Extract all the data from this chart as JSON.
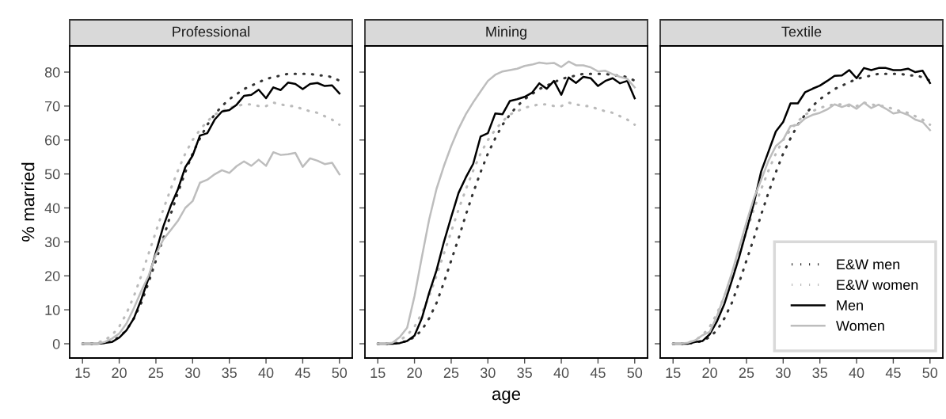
{
  "chart_data": [
    {
      "type": "line",
      "title": "Professional",
      "ylabel": "% married",
      "x": [
        15,
        16,
        17,
        18,
        19,
        20,
        21,
        22,
        23,
        24,
        25,
        26,
        27,
        28,
        29,
        30,
        31,
        32,
        33,
        34,
        35,
        36,
        37,
        38,
        39,
        40,
        41,
        42,
        43,
        44,
        45,
        46,
        47,
        48,
        49,
        50
      ],
      "xlim": [
        13.25,
        51.75
      ],
      "ylim": [
        -4.2,
        87.7
      ],
      "xticks": [
        15,
        20,
        25,
        30,
        35,
        40,
        45,
        50
      ],
      "yticks": [
        0,
        10,
        20,
        30,
        40,
        50,
        60,
        70,
        80
      ],
      "grid": false,
      "series": [
        {
          "color": "#333333",
          "line_style": "dotted",
          "values": [
            0,
            0,
            0.1,
            0.3,
            0.8,
            2,
            4,
            7.5,
            12,
            18,
            24.5,
            31,
            38,
            44.5,
            50.5,
            56,
            60.5,
            64.5,
            67.5,
            70,
            72,
            73.5,
            75,
            76,
            77,
            78,
            78.5,
            79,
            79.5,
            79.5,
            79.5,
            79.5,
            79,
            79,
            78.5,
            77.5
          ]
        },
        {
          "color": "#bbbbbb",
          "line_style": "dotted",
          "values": [
            0,
            0,
            0.3,
            1,
            2.5,
            5,
            9,
            14,
            20,
            26.5,
            33,
            39.5,
            45.5,
            51,
            56,
            60,
            63,
            65.5,
            67.5,
            68.5,
            69.5,
            70,
            70.5,
            70.5,
            70,
            70,
            71,
            70.5,
            70,
            70,
            69,
            68.5,
            68,
            67,
            66,
            64.5
          ]
        },
        {
          "color": "#000000",
          "line_style": "solid",
          "values": [
            0,
            0,
            0,
            0.2,
            0.5,
            1.8,
            4,
            7.5,
            13,
            19.3,
            27,
            34.5,
            40.5,
            45.5,
            52,
            55.4,
            61.3,
            62,
            66,
            68.4,
            68.8,
            70.4,
            73,
            73.3,
            74.8,
            72.3,
            75.5,
            74.7,
            76.9,
            76.5,
            75,
            76.5,
            76.8,
            75.9,
            76.1,
            73.7
          ]
        },
        {
          "color": "#bdbdbd",
          "line_style": "solid",
          "values": [
            0,
            0,
            0,
            0.5,
            1.5,
            3,
            6,
            10.5,
            15.5,
            20,
            26.3,
            30.7,
            33.4,
            36.2,
            40,
            42,
            47.4,
            48.3,
            49.9,
            51.1,
            50.3,
            52.3,
            53.7,
            52.4,
            54.2,
            52.4,
            56.4,
            55.6,
            55.8,
            56.2,
            52.1,
            54.6,
            53.9,
            52.9,
            53.3,
            49.9
          ]
        }
      ]
    },
    {
      "type": "line",
      "title": "Mining",
      "xlabel": "age",
      "x": [
        15,
        16,
        17,
        18,
        19,
        20,
        21,
        22,
        23,
        24,
        25,
        26,
        27,
        28,
        29,
        30,
        31,
        32,
        33,
        34,
        35,
        36,
        37,
        38,
        39,
        40,
        41,
        42,
        43,
        44,
        45,
        46,
        47,
        48,
        49,
        50
      ],
      "xlim": [
        13.25,
        51.75
      ],
      "ylim": [
        -4.2,
        87.7
      ],
      "xticks": [
        15,
        20,
        25,
        30,
        35,
        40,
        45,
        50
      ],
      "yticks": [
        0,
        10,
        20,
        30,
        40,
        50,
        60,
        70,
        80
      ],
      "tick_labels": "x",
      "grid": false,
      "series": [
        {
          "color": "#333333",
          "line_style": "dotted",
          "values": [
            0,
            0,
            0.1,
            0.3,
            0.8,
            2,
            4,
            7.5,
            12,
            18,
            24.5,
            31,
            38,
            44.5,
            50.5,
            56,
            60.5,
            64.5,
            67.5,
            70,
            72,
            73.5,
            75,
            76,
            77,
            78,
            78.5,
            79,
            79.5,
            79.5,
            79.5,
            79.5,
            79,
            79,
            78.5,
            77.5
          ]
        },
        {
          "color": "#bbbbbb",
          "line_style": "dotted",
          "values": [
            0,
            0,
            0.3,
            1,
            2.5,
            5,
            9,
            14,
            20,
            26.5,
            33,
            39.5,
            45.5,
            51,
            56,
            60,
            63,
            65.5,
            67.5,
            68.5,
            69.5,
            70,
            70.5,
            70.5,
            70,
            70,
            71,
            70.5,
            70,
            70,
            69,
            68.5,
            68,
            67,
            66,
            64.5
          ]
        },
        {
          "color": "#000000",
          "line_style": "solid",
          "values": [
            0,
            0,
            0,
            0.2,
            0.8,
            2.4,
            7.5,
            15,
            21.6,
            29.9,
            37.3,
            44.4,
            49,
            53,
            61,
            62,
            67.8,
            67.6,
            71.5,
            72,
            72.7,
            73.9,
            76.7,
            75.1,
            77.4,
            73.3,
            78.4,
            76.8,
            78.6,
            78.2,
            75.9,
            77.4,
            78.2,
            76.7,
            77.4,
            72.3
          ]
        },
        {
          "color": "#bdbdbd",
          "line_style": "solid",
          "values": [
            0,
            0,
            0.3,
            2,
            4.7,
            14,
            25.5,
            36.6,
            45.6,
            52.3,
            58.2,
            63.3,
            67.6,
            71.1,
            74.3,
            77.4,
            79.2,
            80.2,
            80.6,
            81,
            81.8,
            82.2,
            82.8,
            82.5,
            82.7,
            81.5,
            83.1,
            82,
            82,
            81.4,
            80.2,
            80.4,
            79.4,
            78.6,
            78,
            75.5
          ]
        }
      ]
    },
    {
      "type": "line",
      "title": "Textile",
      "x": [
        15,
        16,
        17,
        18,
        19,
        20,
        21,
        22,
        23,
        24,
        25,
        26,
        27,
        28,
        29,
        30,
        31,
        32,
        33,
        34,
        35,
        36,
        37,
        38,
        39,
        40,
        41,
        42,
        43,
        44,
        45,
        46,
        47,
        48,
        49,
        50
      ],
      "xlim": [
        13.25,
        51.75
      ],
      "ylim": [
        -4.2,
        87.7
      ],
      "xticks": [
        15,
        20,
        25,
        30,
        35,
        40,
        45,
        50
      ],
      "yticks": [
        0,
        10,
        20,
        30,
        40,
        50,
        60,
        70,
        80
      ],
      "tick_labels": "x",
      "grid": false,
      "legend": "bottom right",
      "series": [
        {
          "name": "E&W men",
          "color": "#333333",
          "line_style": "dotted",
          "values": [
            0,
            0,
            0.1,
            0.3,
            0.8,
            2,
            4,
            7.5,
            12,
            18,
            24.5,
            31,
            38,
            44.5,
            50.5,
            56,
            60.5,
            64.5,
            67.5,
            70,
            72,
            73.5,
            75,
            76,
            77,
            78,
            78.5,
            79,
            79.5,
            79.5,
            79.5,
            79.5,
            79,
            79,
            78.5,
            77.5
          ]
        },
        {
          "name": "E&W women",
          "color": "#bbbbbb",
          "line_style": "dotted",
          "values": [
            0,
            0,
            0.3,
            1,
            2.5,
            5,
            9,
            14,
            20,
            26.5,
            33,
            39.5,
            45.5,
            51,
            56,
            60,
            63,
            65.5,
            67.5,
            68.5,
            69.5,
            70,
            70.5,
            70.5,
            70,
            70,
            71,
            70.5,
            70,
            70,
            69,
            68.5,
            68,
            67,
            66,
            64.5
          ]
        },
        {
          "name": "Men",
          "color": "#000000",
          "line_style": "solid",
          "values": [
            0,
            0,
            0,
            0.5,
            0.8,
            2.8,
            6.7,
            11.8,
            18.5,
            25.5,
            33.4,
            41.3,
            50.7,
            56.6,
            62.5,
            65.3,
            70.8,
            70.8,
            74.1,
            75.1,
            76,
            77.4,
            78.9,
            79,
            80.6,
            78.2,
            81.2,
            80.6,
            81.2,
            81.2,
            80.6,
            80.6,
            81,
            80,
            80.4,
            76.8
          ]
        },
        {
          "name": "Women",
          "color": "#bdbdbd",
          "line_style": "solid",
          "values": [
            0,
            0,
            0.3,
            1,
            2.5,
            3.5,
            8.3,
            14.2,
            20.8,
            28.3,
            35.8,
            42.8,
            48.3,
            53.9,
            58.2,
            60.1,
            64.1,
            64.5,
            66.4,
            67.4,
            68,
            69,
            70.5,
            69.7,
            70.5,
            69.2,
            71,
            69.4,
            70.4,
            69.2,
            67.8,
            68.2,
            67.4,
            66,
            65.3,
            62.9
          ]
        }
      ]
    }
  ]
}
